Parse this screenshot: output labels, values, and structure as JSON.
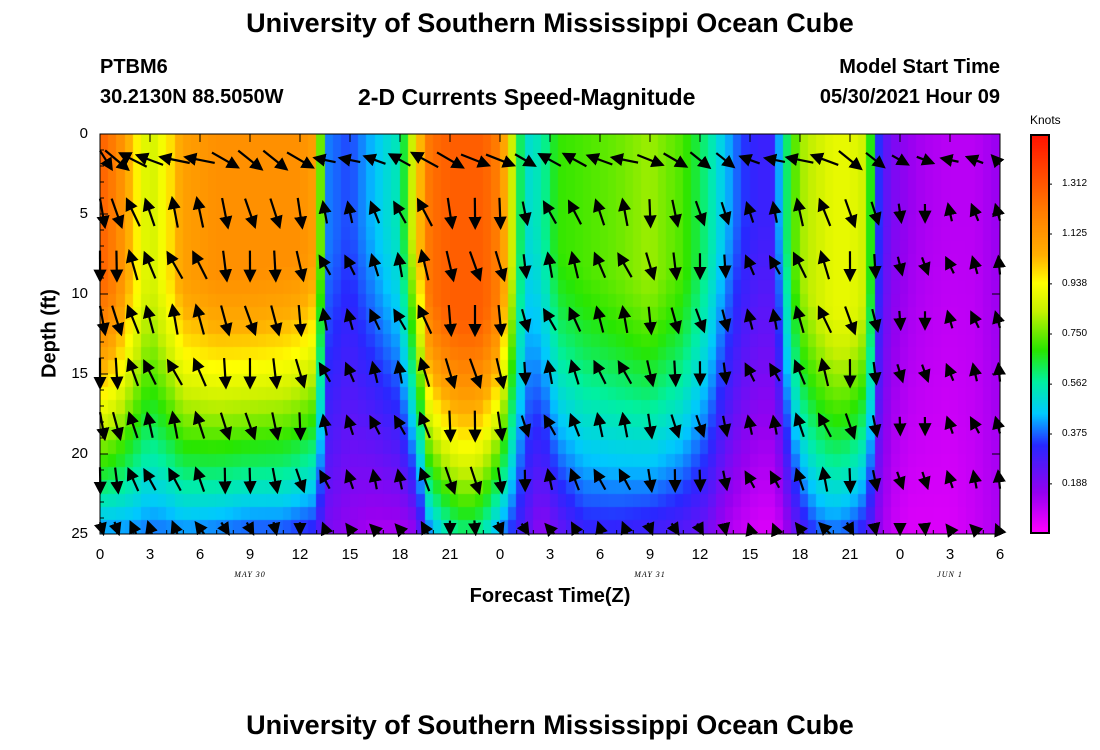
{
  "page_title_top": "University of Southern Mississippi Ocean Cube",
  "page_title_bottom": "University of Southern Mississippi Ocean Cube",
  "station": {
    "name": "PTBM6",
    "coords": "30.2130N  88.5050W"
  },
  "subtitle": "2-D Currents Speed-Magnitude",
  "model_start": {
    "label": "Model Start Time",
    "value": "05/30/2021 Hour 09"
  },
  "colorbar": {
    "unit": "Knots",
    "ticks": [
      "1.312",
      "1.125",
      "0.938",
      "0.750",
      "0.562",
      "0.375",
      "0.188"
    ],
    "range": [
      0.0,
      1.5
    ]
  },
  "chart_data": {
    "type": "heatmap",
    "title": "2-D Currents Speed-Magnitude",
    "xlabel": "Forecast Time(Z)",
    "ylabel": "Depth (ft)",
    "x_tick_labels": [
      "0",
      "3",
      "6",
      "9",
      "12",
      "15",
      "18",
      "21",
      "0",
      "3",
      "6",
      "9",
      "12",
      "15",
      "18",
      "21",
      "0",
      "3",
      "6"
    ],
    "x_range_hours": [
      0,
      54
    ],
    "date_labels": [
      {
        "text": "MAY 30",
        "hour": 9
      },
      {
        "text": "MAY 31",
        "hour": 33
      },
      {
        "text": "JUN 1",
        "hour": 51
      }
    ],
    "y_tick_labels": [
      "0",
      "5",
      "10",
      "15",
      "20",
      "25"
    ],
    "y_range_ft": [
      0,
      25
    ],
    "y_inverted": true,
    "value_unit": "Knots",
    "speed_profile_knots": {
      "hours": [
        0,
        1,
        2,
        3,
        4,
        5,
        7,
        9,
        11,
        12,
        13,
        13.5,
        15,
        16.5,
        18,
        19,
        19.8,
        21,
        22,
        23,
        24,
        25.5,
        26.5,
        27.5,
        29,
        31,
        33,
        35,
        36.5,
        37.5,
        38.5,
        39.5,
        40.5,
        41,
        42,
        43,
        44,
        45,
        46,
        46.8,
        47.5,
        48.5,
        49.5,
        51,
        52.5,
        54
      ],
      "surface": [
        1.3,
        1.2,
        1.0,
        0.85,
        0.95,
        1.1,
        1.15,
        1.15,
        1.15,
        1.15,
        1.1,
        0.4,
        0.35,
        0.45,
        0.55,
        0.95,
        1.25,
        1.3,
        1.3,
        1.3,
        1.2,
        0.5,
        0.55,
        0.7,
        0.72,
        0.75,
        0.8,
        0.72,
        0.58,
        0.45,
        0.35,
        0.3,
        0.3,
        0.55,
        0.8,
        0.85,
        0.9,
        0.9,
        0.85,
        0.3,
        0.2,
        0.15,
        0.12,
        0.1,
        0.1,
        0.15
      ],
      "bottom": [
        0.4,
        0.4,
        0.4,
        0.38,
        0.38,
        0.4,
        0.38,
        0.35,
        0.35,
        0.32,
        0.3,
        0.2,
        0.15,
        0.12,
        0.12,
        0.15,
        0.4,
        0.55,
        0.6,
        0.55,
        0.4,
        0.25,
        0.15,
        0.22,
        0.3,
        0.3,
        0.28,
        0.25,
        0.2,
        0.12,
        0.08,
        0.05,
        0.05,
        0.1,
        0.25,
        0.35,
        0.38,
        0.35,
        0.28,
        0.15,
        0.08,
        0.05,
        0.05,
        0.05,
        0.08,
        0.12
      ],
      "decay_depth_ft": [
        16,
        16,
        16,
        16,
        16,
        16,
        16,
        16,
        15,
        14,
        13,
        12,
        10,
        10,
        10,
        11,
        18,
        20,
        21,
        20,
        18,
        10,
        10,
        13,
        15,
        16,
        16,
        15,
        13,
        10,
        9,
        9,
        9,
        10,
        16,
        19,
        20,
        20,
        18,
        10,
        8,
        8,
        8,
        8,
        8,
        8
      ]
    },
    "vectors": {
      "hours": [
        0,
        1,
        2,
        3,
        4.5,
        6,
        7.5,
        9,
        10.5,
        12,
        13.5,
        15,
        16.5,
        18,
        19.5,
        21,
        22.5,
        24,
        25.5,
        27,
        28.5,
        30,
        31.5,
        33,
        34.5,
        36,
        37.5,
        39,
        40.5,
        42,
        43.5,
        45,
        46.5,
        48,
        49.5,
        51,
        52.5,
        54
      ],
      "depths_ft": [
        1,
        4.3,
        7.6,
        11,
        14.3,
        17.6,
        21,
        24.3
      ],
      "direction_note": "arrows drawn from surface pattern; NW flood, SE ebb"
    }
  }
}
